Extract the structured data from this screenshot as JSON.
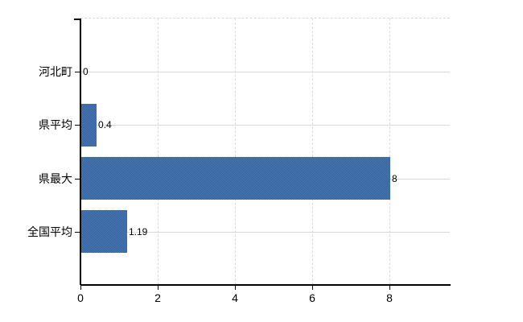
{
  "chart_data": {
    "type": "bar",
    "orientation": "horizontal",
    "title": "",
    "xlabel": "",
    "ylabel": "",
    "categories": [
      "河北町",
      "県平均",
      "県最大",
      "全国平均"
    ],
    "values": [
      0,
      0.4,
      8,
      1.19
    ],
    "value_labels": [
      "0",
      "0.4",
      "8",
      "1.19"
    ],
    "x_ticks": [
      0,
      2,
      4,
      6,
      8
    ],
    "x_tick_labels": [
      "0",
      "2",
      "4",
      "6",
      "8"
    ],
    "xlim": [
      0,
      9.57
    ],
    "grid": true,
    "legend": "none",
    "colors": {
      "bar": "#3f6eab",
      "bar_dither_dark": "#33619e",
      "bar_dither_light": "#4b79b4",
      "h_gridline": "#d4dcd4",
      "v_gridline": "#d9d9d9",
      "top_border": "#d9d9d9",
      "axis": "#000000",
      "text": "#000000",
      "background": "#ffffff"
    }
  }
}
